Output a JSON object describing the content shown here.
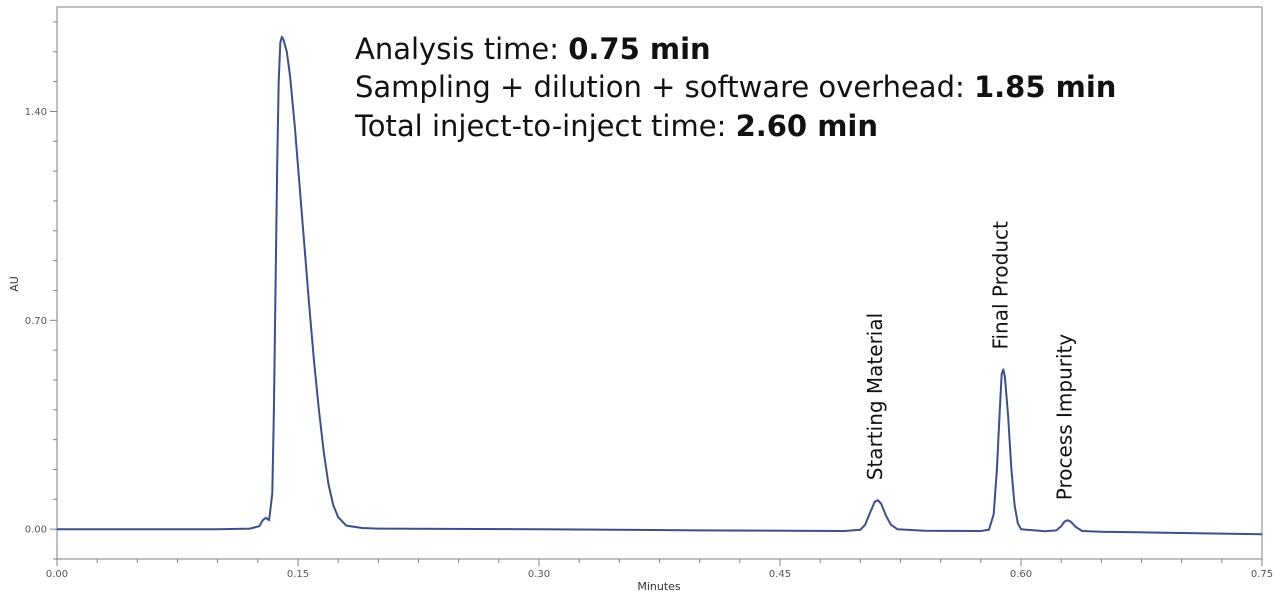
{
  "chart_data": {
    "type": "line",
    "title": "",
    "xlabel": "Minutes",
    "ylabel": "AU",
    "xlim": [
      0.0,
      0.75
    ],
    "ylim": [
      -0.1,
      1.75
    ],
    "x_ticks": [
      "0.00",
      "0.15",
      "0.30",
      "0.45",
      "0.60",
      "0.75"
    ],
    "y_ticks": [
      "0.00",
      "0.70",
      "1.40"
    ],
    "grid": false,
    "line_color": "#3b4f8a",
    "series": [
      {
        "points": [
          [
            0.0,
            0.0
          ],
          [
            0.1,
            0.0
          ],
          [
            0.12,
            0.002
          ],
          [
            0.126,
            0.01
          ],
          [
            0.128,
            0.03
          ],
          [
            0.13,
            0.038
          ],
          [
            0.132,
            0.03
          ],
          [
            0.134,
            0.12
          ],
          [
            0.135,
            0.4
          ],
          [
            0.136,
            0.8
          ],
          [
            0.137,
            1.2
          ],
          [
            0.138,
            1.5
          ],
          [
            0.139,
            1.63
          ],
          [
            0.14,
            1.65
          ],
          [
            0.141,
            1.64
          ],
          [
            0.143,
            1.6
          ],
          [
            0.145,
            1.52
          ],
          [
            0.148,
            1.35
          ],
          [
            0.151,
            1.15
          ],
          [
            0.154,
            0.95
          ],
          [
            0.157,
            0.75
          ],
          [
            0.16,
            0.56
          ],
          [
            0.163,
            0.4
          ],
          [
            0.166,
            0.26
          ],
          [
            0.169,
            0.15
          ],
          [
            0.172,
            0.08
          ],
          [
            0.175,
            0.04
          ],
          [
            0.18,
            0.012
          ],
          [
            0.19,
            0.004
          ],
          [
            0.2,
            0.002
          ],
          [
            0.3,
            0.0
          ],
          [
            0.4,
            -0.004
          ],
          [
            0.49,
            -0.006
          ],
          [
            0.5,
            -0.002
          ],
          [
            0.503,
            0.015
          ],
          [
            0.506,
            0.055
          ],
          [
            0.509,
            0.092
          ],
          [
            0.511,
            0.097
          ],
          [
            0.513,
            0.085
          ],
          [
            0.516,
            0.045
          ],
          [
            0.519,
            0.015
          ],
          [
            0.523,
            0.0
          ],
          [
            0.54,
            -0.005
          ],
          [
            0.575,
            -0.006
          ],
          [
            0.58,
            -0.002
          ],
          [
            0.583,
            0.05
          ],
          [
            0.585,
            0.2
          ],
          [
            0.587,
            0.42
          ],
          [
            0.588,
            0.52
          ],
          [
            0.589,
            0.535
          ],
          [
            0.59,
            0.51
          ],
          [
            0.592,
            0.38
          ],
          [
            0.594,
            0.2
          ],
          [
            0.596,
            0.08
          ],
          [
            0.598,
            0.02
          ],
          [
            0.6,
            0.0
          ],
          [
            0.615,
            -0.007
          ],
          [
            0.622,
            -0.004
          ],
          [
            0.625,
            0.01
          ],
          [
            0.627,
            0.025
          ],
          [
            0.629,
            0.03
          ],
          [
            0.631,
            0.025
          ],
          [
            0.634,
            0.008
          ],
          [
            0.638,
            -0.006
          ],
          [
            0.65,
            -0.009
          ],
          [
            0.7,
            -0.013
          ],
          [
            0.75,
            -0.017
          ]
        ]
      }
    ],
    "annotations": [
      {
        "text": "Starting Material",
        "x": 0.511,
        "y": 0.097
      },
      {
        "text": "Final Product",
        "x": 0.589,
        "y": 0.535
      },
      {
        "text": "Process Impurity",
        "x": 0.629,
        "y": 0.03
      }
    ]
  },
  "info_lines": [
    {
      "label": "Analysis time: ",
      "value": "0.75 min"
    },
    {
      "label": "Sampling + dilution + software overhead: ",
      "value": "1.85 min"
    },
    {
      "label": "Total inject-to-inject time: ",
      "value": "2.60 min"
    }
  ]
}
